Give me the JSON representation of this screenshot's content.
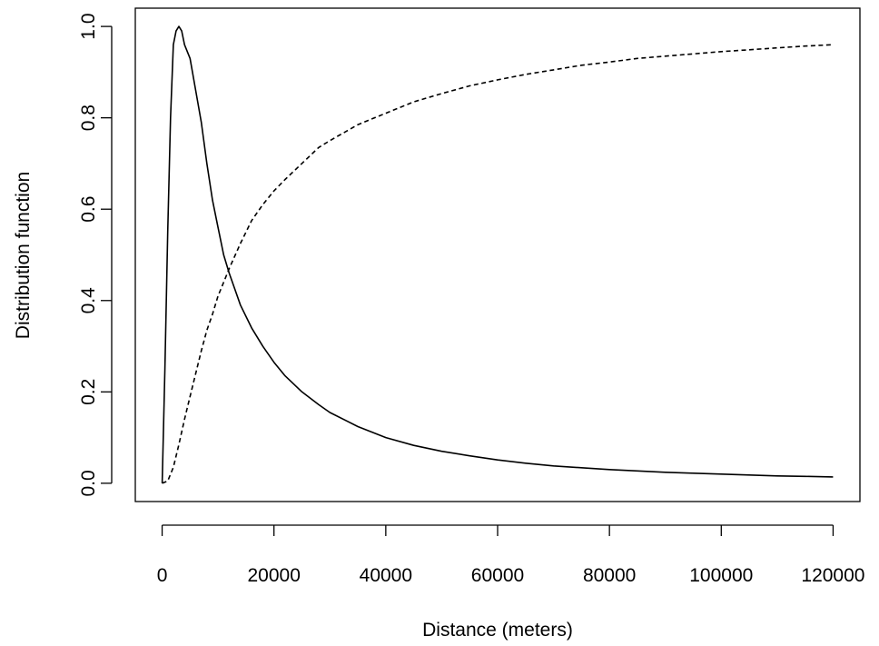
{
  "chart_data": {
    "type": "line",
    "title": "",
    "xlabel": "Distance (meters)",
    "ylabel": "Distribution function",
    "xlim": [
      -4800,
      124800
    ],
    "ylim": [
      -0.04,
      1.04
    ],
    "x_ticks": [
      0,
      20000,
      40000,
      60000,
      80000,
      100000,
      120000
    ],
    "x_tick_labels": [
      "0",
      "20000",
      "40000",
      "60000",
      "80000",
      "100000",
      "120000"
    ],
    "y_ticks": [
      0.0,
      0.2,
      0.4,
      0.6,
      0.8,
      1.0
    ],
    "y_tick_labels": [
      "0.0",
      "0.2",
      "0.4",
      "0.6",
      "0.8",
      "1.0"
    ],
    "grid": false,
    "legend": "none",
    "series": [
      {
        "line_style": "solid",
        "color": "#000000",
        "points": [
          [
            0,
            0.0
          ],
          [
            500,
            0.25
          ],
          [
            1000,
            0.55
          ],
          [
            1500,
            0.8
          ],
          [
            2000,
            0.96
          ],
          [
            2500,
            0.99
          ],
          [
            3000,
            1.0
          ],
          [
            3500,
            0.99
          ],
          [
            4000,
            0.96
          ],
          [
            5000,
            0.93
          ],
          [
            6000,
            0.86
          ],
          [
            7000,
            0.79
          ],
          [
            8000,
            0.7
          ],
          [
            9000,
            0.62
          ],
          [
            10000,
            0.56
          ],
          [
            11000,
            0.5
          ],
          [
            12000,
            0.46
          ],
          [
            14000,
            0.39
          ],
          [
            16000,
            0.34
          ],
          [
            18000,
            0.3
          ],
          [
            20000,
            0.265
          ],
          [
            22000,
            0.235
          ],
          [
            25000,
            0.2
          ],
          [
            28000,
            0.172
          ],
          [
            30000,
            0.155
          ],
          [
            35000,
            0.124
          ],
          [
            40000,
            0.1
          ],
          [
            45000,
            0.083
          ],
          [
            50000,
            0.07
          ],
          [
            55000,
            0.06
          ],
          [
            60000,
            0.051
          ],
          [
            65000,
            0.044
          ],
          [
            70000,
            0.038
          ],
          [
            75000,
            0.034
          ],
          [
            80000,
            0.03
          ],
          [
            85000,
            0.027
          ],
          [
            90000,
            0.024
          ],
          [
            95000,
            0.022
          ],
          [
            100000,
            0.02
          ],
          [
            105000,
            0.018
          ],
          [
            110000,
            0.016
          ],
          [
            115000,
            0.015
          ],
          [
            120000,
            0.014
          ]
        ]
      },
      {
        "line_style": "dashed",
        "color": "#000000",
        "points": [
          [
            0,
            0.0
          ],
          [
            1000,
            0.005
          ],
          [
            2000,
            0.035
          ],
          [
            3000,
            0.085
          ],
          [
            4000,
            0.14
          ],
          [
            5000,
            0.19
          ],
          [
            6000,
            0.24
          ],
          [
            7000,
            0.29
          ],
          [
            8000,
            0.335
          ],
          [
            9000,
            0.37
          ],
          [
            10000,
            0.41
          ],
          [
            11000,
            0.44
          ],
          [
            12000,
            0.47
          ],
          [
            14000,
            0.525
          ],
          [
            16000,
            0.575
          ],
          [
            18000,
            0.61
          ],
          [
            20000,
            0.64
          ],
          [
            22000,
            0.665
          ],
          [
            25000,
            0.7
          ],
          [
            28000,
            0.735
          ],
          [
            30000,
            0.75
          ],
          [
            35000,
            0.785
          ],
          [
            40000,
            0.81
          ],
          [
            45000,
            0.835
          ],
          [
            50000,
            0.853
          ],
          [
            55000,
            0.87
          ],
          [
            60000,
            0.883
          ],
          [
            65000,
            0.895
          ],
          [
            70000,
            0.905
          ],
          [
            75000,
            0.915
          ],
          [
            80000,
            0.922
          ],
          [
            85000,
            0.93
          ],
          [
            90000,
            0.935
          ],
          [
            95000,
            0.94
          ],
          [
            100000,
            0.945
          ],
          [
            105000,
            0.949
          ],
          [
            110000,
            0.953
          ],
          [
            115000,
            0.957
          ],
          [
            120000,
            0.96
          ]
        ]
      }
    ]
  }
}
